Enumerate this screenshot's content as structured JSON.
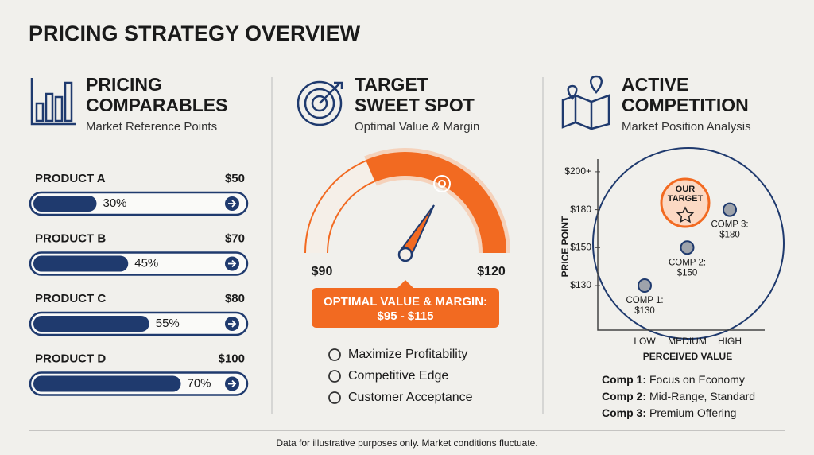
{
  "title": "PRICING STRATEGY OVERVIEW",
  "comparables": {
    "title_lines": [
      "PRICING",
      "COMPARABLES"
    ],
    "subtitle": "Market Reference Points",
    "products": [
      {
        "name": "PRODUCT A",
        "price": "$50",
        "percent": 30,
        "percent_label": "30%"
      },
      {
        "name": "PRODUCT B",
        "price": "$70",
        "percent": 45,
        "percent_label": "45%"
      },
      {
        "name": "PRODUCT C",
        "price": "$80",
        "percent": 55,
        "percent_label": "55%"
      },
      {
        "name": "PRODUCT D",
        "price": "$100",
        "percent": 70,
        "percent_label": "70%"
      }
    ]
  },
  "target": {
    "title_lines": [
      "TARGET",
      "SWEET SPOT"
    ],
    "subtitle": "Optimal Value & Margin",
    "gauge_min_label": "$90",
    "gauge_max_label": "$120",
    "callout_lines": [
      "OPTIMAL VALUE & MARGIN:",
      "$95 - $115"
    ],
    "benefits": [
      "Maximize Profitability",
      "Competitive Edge",
      "Customer Acceptance"
    ]
  },
  "competition": {
    "title_lines": [
      "ACTIVE",
      "COMPETITION"
    ],
    "subtitle": "Market Position Analysis",
    "y_label": "PRICE POINT",
    "x_label": "PERCEIVED VALUE",
    "x_categories": [
      "LOW",
      "MEDIUM",
      "HIGH"
    ],
    "yticks": [
      {
        "value": 130,
        "label": "$130"
      },
      {
        "value": 150,
        "label": "$150"
      },
      {
        "value": 180,
        "label": "$180"
      },
      {
        "value": 200,
        "label": "$200+"
      }
    ],
    "target_label_lines": [
      "OUR",
      "TARGET"
    ],
    "points": [
      {
        "name": "COMP 1:",
        "x": "LOW",
        "y": 130,
        "label": "$130"
      },
      {
        "name": "COMP 2:",
        "x": "MEDIUM",
        "y": 150,
        "label": "$150"
      },
      {
        "name": "COMP 3:",
        "x": "HIGH",
        "y": 180,
        "label": "$180"
      }
    ],
    "notes": [
      {
        "name": "Comp 1:",
        "text": "Focus on Economy"
      },
      {
        "name": "Comp 2:",
        "text": "Mid-Range, Standard"
      },
      {
        "name": "Comp 3:",
        "text": "Premium Offering"
      }
    ]
  },
  "footer": "Data for illustrative purposes only. Market conditions fluctuate."
}
